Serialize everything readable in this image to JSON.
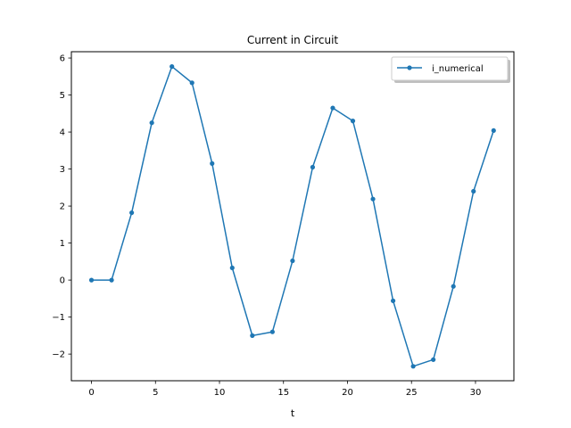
{
  "chart_data": {
    "type": "line",
    "title": "Current in Circuit",
    "xlabel": "t",
    "ylabel": "",
    "xlim": [
      -1.57,
      33.0
    ],
    "ylim": [
      -2.72,
      6.17
    ],
    "x_ticks": [
      0,
      5,
      10,
      15,
      20,
      25,
      30
    ],
    "y_ticks": [
      -2,
      -1,
      0,
      1,
      2,
      3,
      4,
      5,
      6
    ],
    "x_tick_labels": [
      "0",
      "5",
      "10",
      "15",
      "20",
      "25",
      "30"
    ],
    "y_tick_labels": [
      "−2",
      "−1",
      "0",
      "1",
      "2",
      "3",
      "4",
      "5",
      "6"
    ],
    "grid": false,
    "legend_position": "top-right",
    "series": [
      {
        "name": "i_numerical",
        "color": "#1f77b4",
        "marker": "circle",
        "x": [
          0.0,
          1.571,
          3.142,
          4.712,
          6.283,
          7.854,
          9.425,
          10.996,
          12.566,
          14.137,
          15.708,
          17.279,
          18.85,
          20.42,
          21.991,
          23.562,
          25.133,
          26.704,
          28.274,
          29.845,
          31.416
        ],
        "y": [
          0.0,
          0.0,
          1.82,
          4.25,
          5.77,
          5.33,
          3.15,
          0.33,
          -1.5,
          -1.4,
          0.52,
          3.05,
          4.65,
          4.3,
          2.19,
          -0.56,
          -2.33,
          -2.15,
          -0.17,
          2.4,
          4.04
        ]
      }
    ]
  }
}
